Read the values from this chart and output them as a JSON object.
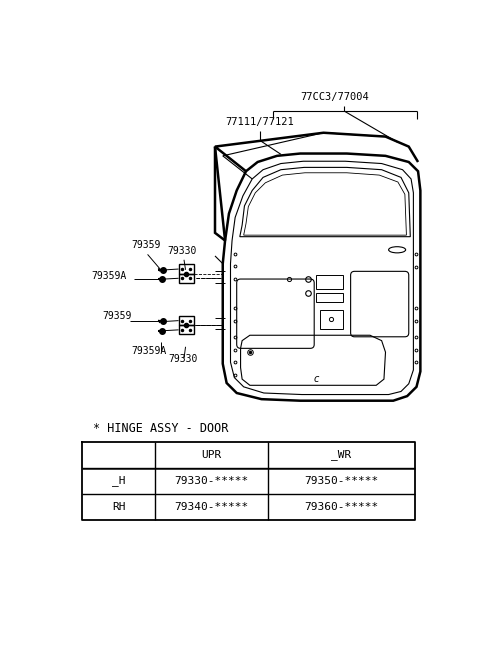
{
  "bg_color": "#ffffff",
  "label_77003": "77CC3/77004",
  "label_77111": "77111/77121",
  "label_79359_top": "79359",
  "label_79330_top": "79330",
  "label_79359A_top": "79359A",
  "label_79359_bot": "79359",
  "label_79359A_bot": "79359A",
  "label_79330_bot": "79330",
  "hinge_title": "* HINGE ASSY - DOOR",
  "table_headers": [
    "",
    "UPR",
    "_WR"
  ],
  "table_row1": [
    "_H",
    "79330-*****",
    "79350-*****"
  ],
  "table_row2": [
    "RH",
    "79340-*****",
    "79360-*****"
  ],
  "text_color": "#000000",
  "line_color": "#000000"
}
